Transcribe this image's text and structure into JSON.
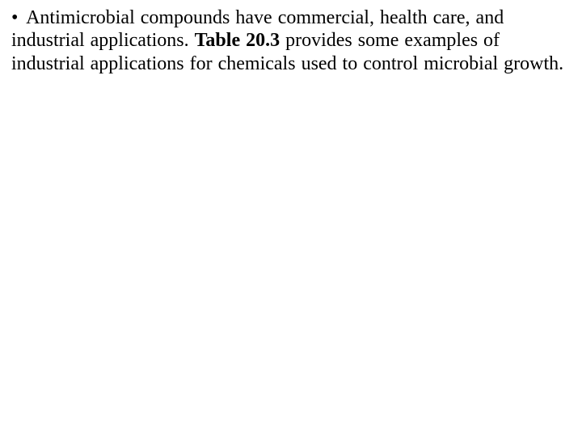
{
  "slide": {
    "background_color": "#ffffff",
    "text_color": "#000000",
    "font_family": "Times New Roman",
    "font_size_pt": 24,
    "bullet": {
      "mark": "•",
      "text_before_bold": "Antimicrobial compounds have commercial, health care, and industrial applications. ",
      "bold_text": "Table 20.3",
      "text_after_bold": " provides some examples of industrial applications for chemicals used to control microbial growth."
    }
  }
}
